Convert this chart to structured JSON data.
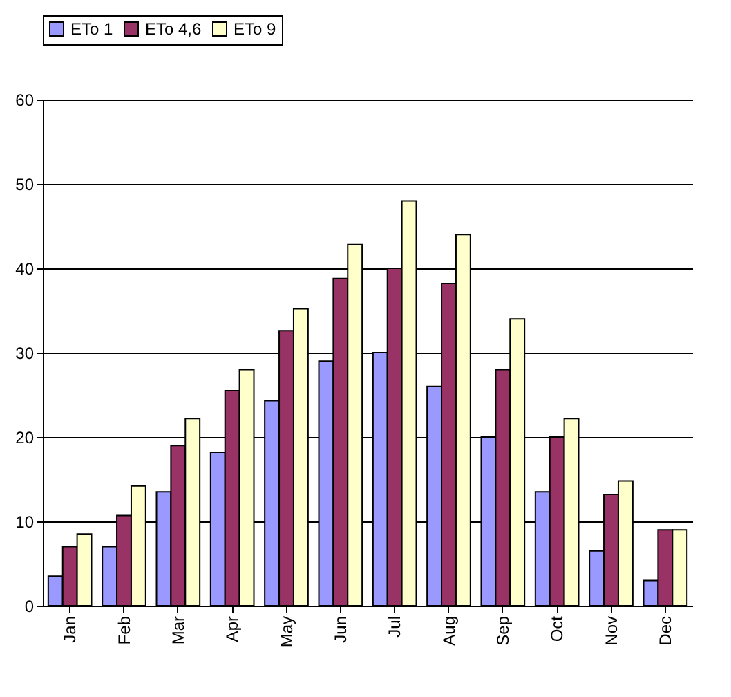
{
  "chart_data": {
    "type": "bar",
    "categories": [
      "Jan",
      "Feb",
      "Mar",
      "Apr",
      "May",
      "Jun",
      "Jul",
      "Aug",
      "Sep",
      "Oct",
      "Nov",
      "Dec"
    ],
    "series": [
      {
        "name": "ETo 1",
        "color": "#9999ff",
        "values": [
          3.5,
          7,
          13.5,
          18.2,
          24.3,
          29,
          30,
          26,
          20,
          13.5,
          6.5,
          3
        ]
      },
      {
        "name": "ETo 4,6",
        "color": "#993366",
        "values": [
          7,
          10.7,
          19,
          25.5,
          32.6,
          38.8,
          40,
          38.2,
          28,
          20,
          13.2,
          9
        ]
      },
      {
        "name": "ETo 9",
        "color": "#ffffcc",
        "values": [
          8.5,
          14.2,
          22.2,
          28,
          35.2,
          42.8,
          48,
          44,
          34,
          22.2,
          14.8,
          9
        ]
      }
    ],
    "ylim": [
      0,
      60
    ],
    "yticks": [
      0,
      10,
      20,
      30,
      40,
      50,
      60
    ],
    "grid": "y",
    "legend": "top"
  }
}
